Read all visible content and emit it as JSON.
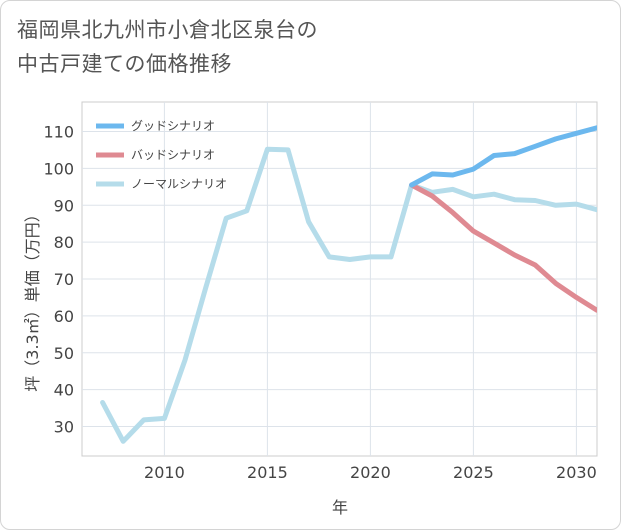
{
  "title": {
    "line1": "福岡県北九州市小倉北区泉台の",
    "line2": "中古戸建ての価格推移"
  },
  "chart_data": {
    "type": "line",
    "xlabel": "年",
    "ylabel": "坪（3.3㎡）単価（万円）",
    "xlim": [
      2006,
      2031
    ],
    "ylim": [
      22,
      118
    ],
    "x_ticks": [
      2010,
      2015,
      2020,
      2025,
      2030
    ],
    "y_ticks": [
      30,
      40,
      50,
      60,
      70,
      80,
      90,
      100,
      110
    ],
    "legend_position": "top-left",
    "series": [
      {
        "name": "グッドシナリオ",
        "color": "#6cb8ee",
        "x": [
          2022,
          2023,
          2024,
          2025,
          2026,
          2027,
          2028,
          2029,
          2030,
          2031
        ],
        "values": [
          95.5,
          98.5,
          98.2,
          99.8,
          103.5,
          104.0,
          106.0,
          108.0,
          109.5,
          111.0
        ]
      },
      {
        "name": "バッドシナリオ",
        "color": "#df8a92",
        "x": [
          2022,
          2023,
          2024,
          2025,
          2026,
          2027,
          2028,
          2029,
          2030,
          2031
        ],
        "values": [
          95.5,
          92.5,
          88.0,
          83.0,
          79.8,
          76.5,
          73.8,
          68.8,
          65.0,
          61.5
        ]
      },
      {
        "name": "ノーマルシナリオ",
        "color": "#b5dcea",
        "x": [
          2007,
          2008,
          2009,
          2010,
          2011,
          2012,
          2013,
          2014,
          2015,
          2016,
          2017,
          2018,
          2019,
          2020,
          2021,
          2022,
          2023,
          2024,
          2025,
          2026,
          2027,
          2028,
          2029,
          2030,
          2031
        ],
        "values": [
          36.5,
          26.0,
          31.8,
          32.2,
          48.0,
          67.5,
          86.5,
          88.5,
          105.2,
          105.0,
          85.5,
          76.0,
          75.3,
          76.0,
          76.0,
          95.5,
          93.5,
          94.3,
          92.3,
          93.0,
          91.5,
          91.3,
          90.0,
          90.3,
          88.8
        ]
      }
    ]
  }
}
